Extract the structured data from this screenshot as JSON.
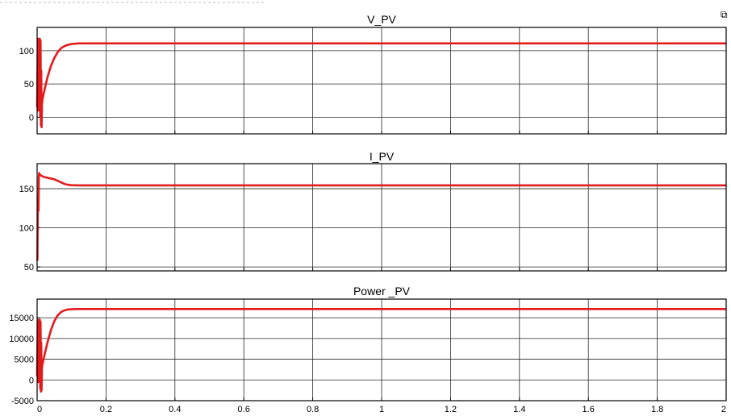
{
  "window": {
    "undock_icon": "undock-icon"
  },
  "colors": {
    "trace": "#e31a1c",
    "grid": "#262626",
    "frame": "#000000",
    "background": "#ffffff"
  },
  "chart_data": [
    {
      "type": "line",
      "title": "V_PV",
      "xlabel": "",
      "ylabel": "",
      "xlim": [
        0,
        2
      ],
      "ylim": [
        -25,
        135
      ],
      "xticks": [
        0,
        0.2,
        0.4,
        0.6,
        0.8,
        1,
        1.2,
        1.4,
        1.6,
        1.8,
        2
      ],
      "yticks": [
        0,
        50,
        100
      ],
      "xtick_labels_shown": false,
      "grid": true,
      "series": [
        {
          "x": [
            0,
            0.002,
            0.003,
            0.004,
            0.005,
            0.006,
            0.007,
            0.008,
            0.009,
            0.01,
            0.011,
            0.012,
            0.013,
            0.014,
            0.016,
            0.02,
            0.03,
            0.04,
            0.05,
            0.06,
            0.07,
            0.08,
            0.09,
            0.1,
            0.12,
            0.15,
            0.2,
            0.4,
            0.6,
            0.8,
            1.0,
            1.2,
            1.4,
            1.6,
            1.8,
            2.0
          ],
          "y": [
            15,
            118,
            10,
            118,
            12,
            118,
            15,
            118,
            0,
            115,
            -12,
            70,
            -15,
            20,
            28,
            38,
            60,
            77,
            89,
            98,
            104,
            107,
            109,
            110,
            111,
            111,
            111,
            111,
            111,
            111,
            111,
            111,
            111,
            111,
            111,
            111
          ]
        }
      ]
    },
    {
      "type": "line",
      "title": "I_PV",
      "xlabel": "",
      "ylabel": "",
      "xlim": [
        0,
        2
      ],
      "ylim": [
        45,
        182
      ],
      "xticks": [
        0,
        0.2,
        0.4,
        0.6,
        0.8,
        1,
        1.2,
        1.4,
        1.6,
        1.8,
        2
      ],
      "yticks": [
        50,
        100,
        150
      ],
      "xtick_labels_shown": false,
      "grid": true,
      "series": [
        {
          "x": [
            0,
            0.001,
            0.002,
            0.003,
            0.004,
            0.005,
            0.006,
            0.008,
            0.01,
            0.02,
            0.03,
            0.04,
            0.05,
            0.06,
            0.07,
            0.08,
            0.09,
            0.1,
            0.12,
            0.15,
            0.2,
            0.4,
            0.6,
            0.8,
            1.0,
            1.2,
            1.4,
            1.6,
            1.8,
            2.0
          ],
          "y": [
            58,
            60,
            120,
            135,
            122,
            165,
            170,
            168,
            167,
            165,
            164,
            163,
            162,
            160,
            158,
            156,
            155,
            154.5,
            154.3,
            154.3,
            154.3,
            154.3,
            154.3,
            154.3,
            154.3,
            154.3,
            154.3,
            154.3,
            154.3,
            154.3
          ]
        }
      ]
    },
    {
      "type": "line",
      "title": "Power _PV",
      "xlabel": "",
      "ylabel": "",
      "xlim": [
        0,
        2
      ],
      "ylim": [
        -5000,
        19500
      ],
      "xticks": [
        0,
        0.2,
        0.4,
        0.6,
        0.8,
        1,
        1.2,
        1.4,
        1.6,
        1.8,
        2
      ],
      "xtick_labels": [
        "0",
        "0.2",
        "0.4",
        "0.6",
        "0.8",
        "1",
        "1.2",
        "1.4",
        "1.6",
        "1.8",
        "2"
      ],
      "yticks": [
        -5000,
        0,
        5000,
        10000,
        15000
      ],
      "grid": true,
      "series": [
        {
          "x": [
            0,
            0.002,
            0.003,
            0.004,
            0.005,
            0.006,
            0.007,
            0.008,
            0.009,
            0.01,
            0.011,
            0.012,
            0.013,
            0.014,
            0.016,
            0.02,
            0.03,
            0.04,
            0.05,
            0.06,
            0.07,
            0.08,
            0.09,
            0.1,
            0.12,
            0.15,
            0.2,
            0.4,
            0.6,
            0.8,
            1.0,
            1.2,
            1.4,
            1.6,
            1.8,
            2.0
          ],
          "y": [
            1000,
            14500,
            -500,
            14500,
            0,
            14500,
            500,
            14500,
            -2000,
            14000,
            -2800,
            9000,
            -2500,
            3000,
            4000,
            5500,
            9000,
            12000,
            14200,
            15600,
            16400,
            16800,
            17000,
            17050,
            17100,
            17100,
            17100,
            17100,
            17100,
            17100,
            17100,
            17100,
            17100,
            17100,
            17100,
            17100
          ]
        }
      ]
    }
  ]
}
